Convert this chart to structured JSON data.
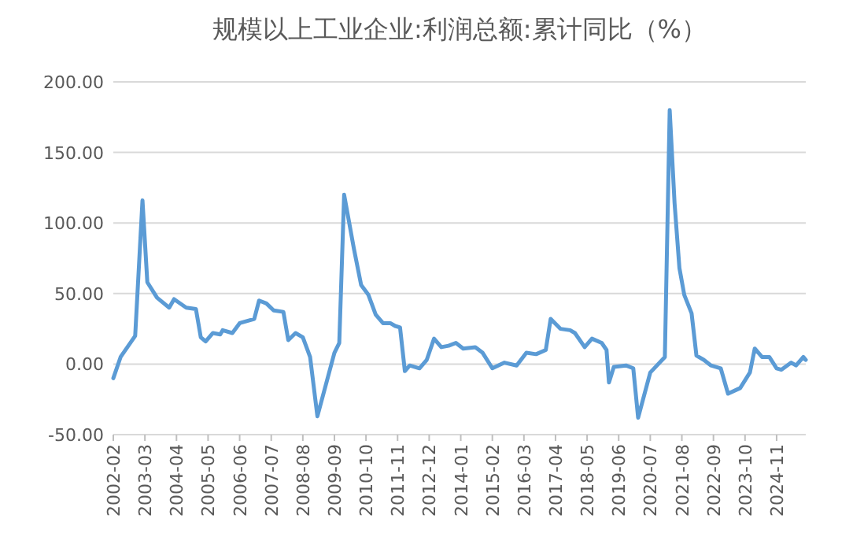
{
  "chart_data": {
    "type": "line",
    "title": "规模以上工业企业:利润总额:累计同比（%）",
    "x": [
      "2002-02",
      "2002-05",
      "2002-11",
      "2003-02",
      "2003-04",
      "2003-08",
      "2004-01",
      "2004-03",
      "2004-08",
      "2004-12",
      "2005-02",
      "2005-04",
      "2005-07",
      "2005-10",
      "2005-11",
      "2006-03",
      "2006-06",
      "2006-12",
      "2007-02",
      "2007-05",
      "2007-08",
      "2007-12",
      "2008-02",
      "2008-05",
      "2008-08",
      "2008-11",
      "2009-02",
      "2009-09",
      "2009-11",
      "2010-01",
      "2010-05",
      "2010-08",
      "2010-11",
      "2011-02",
      "2011-05",
      "2011-08",
      "2011-10",
      "2011-12",
      "2012-02",
      "2012-04",
      "2012-08",
      "2012-11",
      "2013-02",
      "2013-05",
      "2013-08",
      "2013-11",
      "2014-02",
      "2014-07",
      "2014-10",
      "2015-02",
      "2015-07",
      "2015-12",
      "2016-04",
      "2016-08",
      "2016-12",
      "2017-02",
      "2017-06",
      "2017-10",
      "2017-12",
      "2018-04",
      "2018-07",
      "2018-11",
      "2019-01",
      "2019-02",
      "2019-04",
      "2019-09",
      "2019-12",
      "2020-02",
      "2020-07",
      "2021-01",
      "2021-03",
      "2021-05",
      "2021-07",
      "2021-09",
      "2021-12",
      "2022-02",
      "2022-05",
      "2022-08",
      "2022-12",
      "2023-03",
      "2023-08",
      "2023-12",
      "2024-02",
      "2024-05",
      "2024-08",
      "2024-11",
      "2025-01",
      "2025-05",
      "2025-07",
      "2025-10",
      "2025-11"
    ],
    "series": [
      {
        "color": "#5b9bd5",
        "values": [
          -10,
          5,
          20,
          116,
          58,
          47,
          40,
          46,
          40,
          39,
          19,
          16,
          22,
          21,
          24,
          22,
          29,
          32,
          45,
          43,
          38,
          37,
          17,
          22,
          19,
          5,
          -37,
          8,
          15,
          120,
          82,
          56,
          49,
          35,
          29,
          29,
          27,
          26,
          -5,
          -1,
          -3,
          3,
          18,
          12,
          13,
          15,
          11,
          12,
          8,
          -3,
          1,
          -1,
          8,
          7,
          10,
          32,
          25,
          24,
          22,
          12,
          18,
          15,
          10,
          -13,
          -2,
          -1,
          -3,
          -38,
          -6,
          5,
          180,
          114,
          68,
          49,
          36,
          6,
          3,
          -1,
          -3,
          -21,
          -17,
          -6,
          11,
          5,
          5,
          -3,
          -4,
          1,
          -1,
          5,
          3
        ]
      }
    ],
    "xlim": [
      "2002-02",
      "2025-11"
    ],
    "xticks": [
      "2002-02",
      "2003-03",
      "2004-04",
      "2005-05",
      "2006-06",
      "2007-07",
      "2008-08",
      "2009-09",
      "2010-10",
      "2011-11",
      "2012-12",
      "2014-01",
      "2015-02",
      "2016-03",
      "2017-04",
      "2018-05",
      "2019-06",
      "2020-07",
      "2021-08",
      "2022-09",
      "2023-10",
      "2024-11"
    ],
    "ylim": [
      -50,
      200
    ],
    "yticks": [
      {
        "value": -50,
        "label": "-50.00"
      },
      {
        "value": 0,
        "label": "0.00"
      },
      {
        "value": 50,
        "label": "50.00"
      },
      {
        "value": 100,
        "label": "100.00"
      },
      {
        "value": 150,
        "label": "150.00"
      },
      {
        "value": 200,
        "label": "200.00"
      }
    ],
    "grid": "y",
    "line_style": "solid",
    "marker": "none"
  }
}
